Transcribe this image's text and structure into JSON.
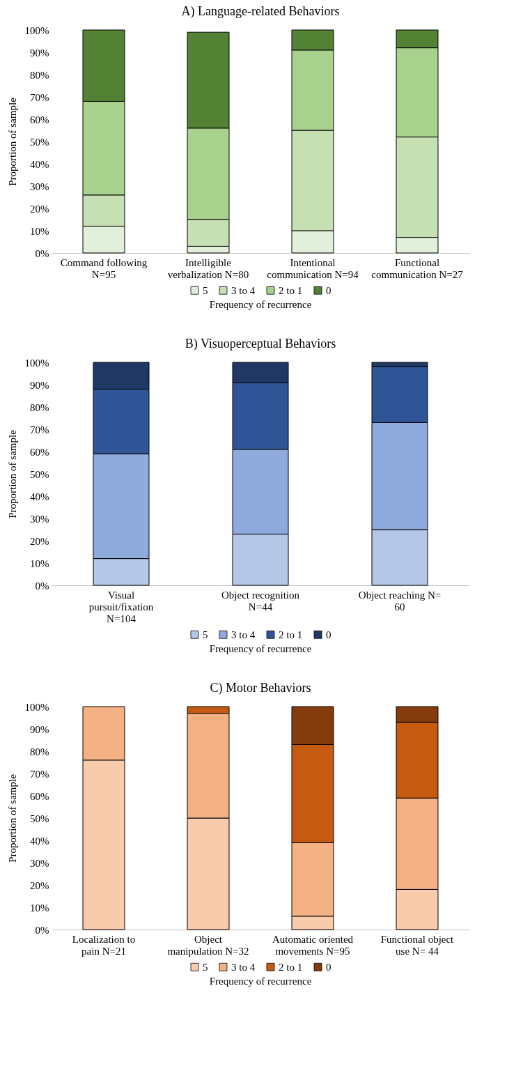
{
  "chart_data": [
    {
      "type": "bar",
      "stacked": true,
      "title": "A) Language-related  Behaviors",
      "ylabel": "Proportion  of sample",
      "legend_title": "Frequency  of recurrence",
      "legend": "bottom",
      "grid": false,
      "categories": [
        "Command following N=95",
        "Intelligible verbalization N=80",
        "Intentional communication N=94",
        "Functional communication N=27"
      ],
      "ylim": [
        0,
        100
      ],
      "yticks": [
        {
          "value": 0,
          "label": "0%"
        },
        {
          "value": 10,
          "label": "10%"
        },
        {
          "value": 20,
          "label": "20%"
        },
        {
          "value": 30,
          "label": "30%"
        },
        {
          "value": 40,
          "label": "40%"
        },
        {
          "value": 50,
          "label": "50%"
        },
        {
          "value": 60,
          "label": "60%"
        },
        {
          "value": 70,
          "label": "70%"
        },
        {
          "value": 80,
          "label": "80%"
        },
        {
          "value": 90,
          "label": "90%"
        },
        {
          "value": 100,
          "label": "100%"
        }
      ],
      "series": [
        {
          "name": "5",
          "color": "#e2efda",
          "values": [
            12,
            3,
            10,
            7
          ]
        },
        {
          "name": "3 to 4",
          "color": "#c6e0b4",
          "values": [
            14,
            12,
            45,
            45
          ]
        },
        {
          "name": "2 to 1",
          "color": "#a9d18e",
          "values": [
            42,
            41,
            36,
            40
          ]
        },
        {
          "name": "0",
          "color": "#548235",
          "values": [
            32,
            43,
            9,
            8
          ]
        }
      ]
    },
    {
      "type": "bar",
      "stacked": true,
      "title": "B) Visuoperceptual Behaviors",
      "ylabel": "Proportion  of sample",
      "legend_title": "Frequency  of recurrence",
      "legend": "bottom",
      "grid": false,
      "categories": [
        "Visual pursuit/fixation N=104",
        "Object recognition N=44",
        "Object reaching N= 60"
      ],
      "ylim": [
        0,
        100
      ],
      "yticks": [
        {
          "value": 0,
          "label": "0%"
        },
        {
          "value": 10,
          "label": "10%"
        },
        {
          "value": 20,
          "label": "20%"
        },
        {
          "value": 30,
          "label": "30%"
        },
        {
          "value": 40,
          "label": "40%"
        },
        {
          "value": 50,
          "label": "50%"
        },
        {
          "value": 60,
          "label": "60%"
        },
        {
          "value": 70,
          "label": "70%"
        },
        {
          "value": 80,
          "label": "80%"
        },
        {
          "value": 90,
          "label": "90%"
        },
        {
          "value": 100,
          "label": "100%"
        }
      ],
      "series": [
        {
          "name": "5",
          "color": "#b4c7e7",
          "values": [
            12,
            23,
            25
          ]
        },
        {
          "name": "3 to 4",
          "color": "#8faadc",
          "values": [
            47,
            38,
            48
          ]
        },
        {
          "name": "2 to 1",
          "color": "#2f5597",
          "values": [
            29,
            30,
            25
          ]
        },
        {
          "name": "0",
          "color": "#203864",
          "values": [
            12,
            9,
            2
          ]
        }
      ]
    },
    {
      "type": "bar",
      "stacked": true,
      "title": "C) Motor Behaviors",
      "ylabel": "Proportion  of sample",
      "legend_title": "Frequency  of recurrence",
      "legend": "bottom",
      "grid": false,
      "categories": [
        "Localization to pain N=21",
        "Object manipulation N=32",
        "Automatic oriented movements N=95",
        "Functional object use N= 44"
      ],
      "ylim": [
        0,
        100
      ],
      "yticks": [
        {
          "value": 0,
          "label": "0%"
        },
        {
          "value": 10,
          "label": "10%"
        },
        {
          "value": 20,
          "label": "20%"
        },
        {
          "value": 30,
          "label": "30%"
        },
        {
          "value": 40,
          "label": "40%"
        },
        {
          "value": 50,
          "label": "50%"
        },
        {
          "value": 60,
          "label": "60%"
        },
        {
          "value": 70,
          "label": "70%"
        },
        {
          "value": 80,
          "label": "80%"
        },
        {
          "value": 90,
          "label": "90%"
        },
        {
          "value": 100,
          "label": "100%"
        }
      ],
      "series": [
        {
          "name": "5",
          "color": "#f8cbad",
          "values": [
            76,
            50,
            6,
            18
          ]
        },
        {
          "name": "3 to 4",
          "color": "#f4b183",
          "values": [
            24,
            47,
            33,
            41
          ]
        },
        {
          "name": "2 to 1",
          "color": "#c55a11",
          "values": [
            0,
            3,
            44,
            34
          ]
        },
        {
          "name": "0",
          "color": "#843c0c",
          "values": [
            0,
            0,
            17,
            7
          ]
        }
      ]
    }
  ]
}
